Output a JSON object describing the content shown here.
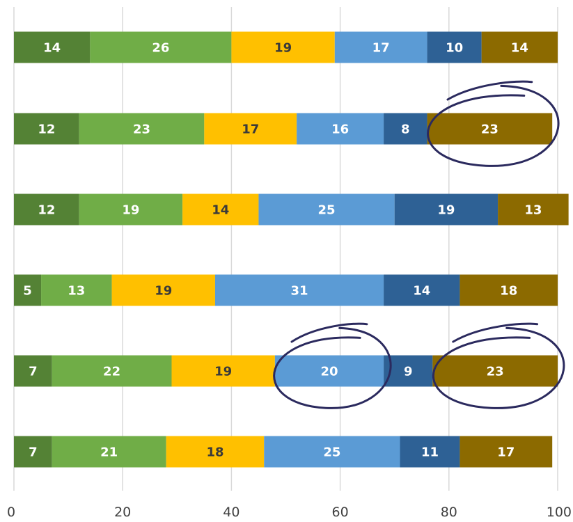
{
  "chart_data": {
    "type": "bar",
    "orientation": "horizontal",
    "stacked": true,
    "title": "",
    "xlabel": "",
    "ylabel": "",
    "xlim": [
      0,
      100
    ],
    "x_ticks": [
      "0",
      "20",
      "40",
      "60",
      "80",
      "100"
    ],
    "grid": "vertical",
    "legend": "none",
    "rows": 6,
    "series": [
      {
        "color": "#548235",
        "values": [
          14,
          12,
          12,
          5,
          7,
          7
        ]
      },
      {
        "color": "#70ad47",
        "values": [
          26,
          23,
          19,
          13,
          22,
          21
        ]
      },
      {
        "color": "#ffc000",
        "values": [
          19,
          17,
          14,
          19,
          19,
          18
        ]
      },
      {
        "color": "#5b9bd5",
        "values": [
          17,
          16,
          25,
          31,
          20,
          25
        ]
      },
      {
        "color": "#2e6195",
        "values": [
          10,
          8,
          19,
          14,
          9,
          11
        ]
      },
      {
        "color": "#8c6a00",
        "values": [
          14,
          23,
          13,
          18,
          23,
          17
        ]
      }
    ],
    "label_dark_series": [
      2
    ],
    "annotations": [
      {
        "type": "hand-drawn-circle",
        "row": 2,
        "series": 6
      },
      {
        "type": "hand-drawn-circle",
        "row": 5,
        "series": 4
      },
      {
        "type": "hand-drawn-circle",
        "row": 5,
        "series": 6
      }
    ],
    "annotation_color": "#2b2a5e"
  }
}
